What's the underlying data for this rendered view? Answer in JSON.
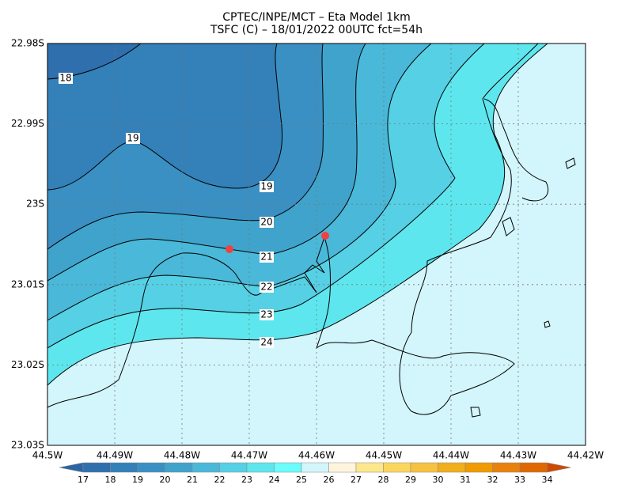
{
  "header": {
    "line1": "CPTEC/INPE/MCT –  Eta Model 1km",
    "line2": "TSFC (C) – 18/01/2022 00UTC fct=54h"
  },
  "yticks": [
    "22.98S",
    "22.99S",
    "23S",
    "23.01S",
    "23.02S",
    "23.03S"
  ],
  "xticks": [
    "44.5W",
    "44.49W",
    "44.48W",
    "44.47W",
    "44.46W",
    "44.45W",
    "44.44W",
    "44.43W",
    "44.42W"
  ],
  "contour_labels": [
    18,
    19,
    19,
    20,
    21,
    22,
    23,
    24
  ],
  "colorbar": {
    "levels": [
      17,
      18,
      19,
      20,
      21,
      22,
      23,
      24,
      25,
      26,
      27,
      28,
      29,
      30,
      31,
      32,
      33,
      34
    ],
    "colors": [
      "#2b64a5",
      "#2f6fae",
      "#3480b8",
      "#3a90c2",
      "#40a3cb",
      "#4ab8d8",
      "#55d0e4",
      "#5ee6ee",
      "#6bfcfc",
      "#d3f5fc",
      "#fff5dc",
      "#fde68c",
      "#fcd65c",
      "#f6c240",
      "#f1af1c",
      "#f09b00",
      "#e8820c",
      "#df6800",
      "#cf4a00"
    ]
  }
}
